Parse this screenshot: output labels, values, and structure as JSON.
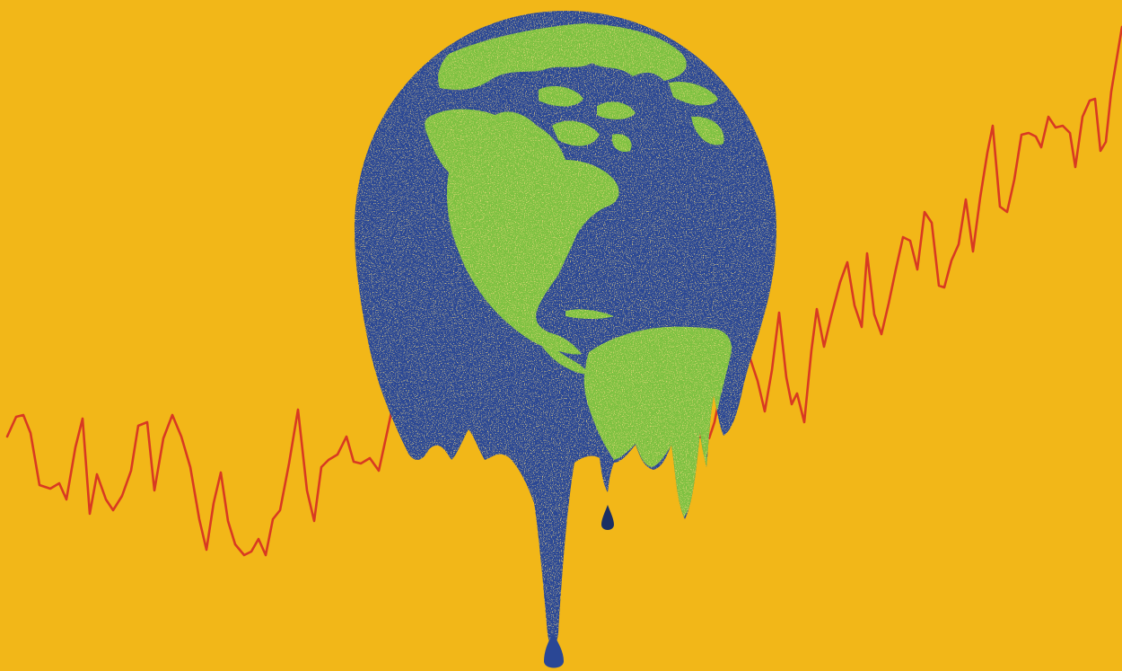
{
  "colors": {
    "background": "#F2B718",
    "trend_line": "#D83A22",
    "ocean": "#2A4795",
    "land": "#7DC141",
    "speckle": "#E8B83A"
  },
  "icons": [
    "melting-earth-icon",
    "temperature-trend-line-icon"
  ]
}
